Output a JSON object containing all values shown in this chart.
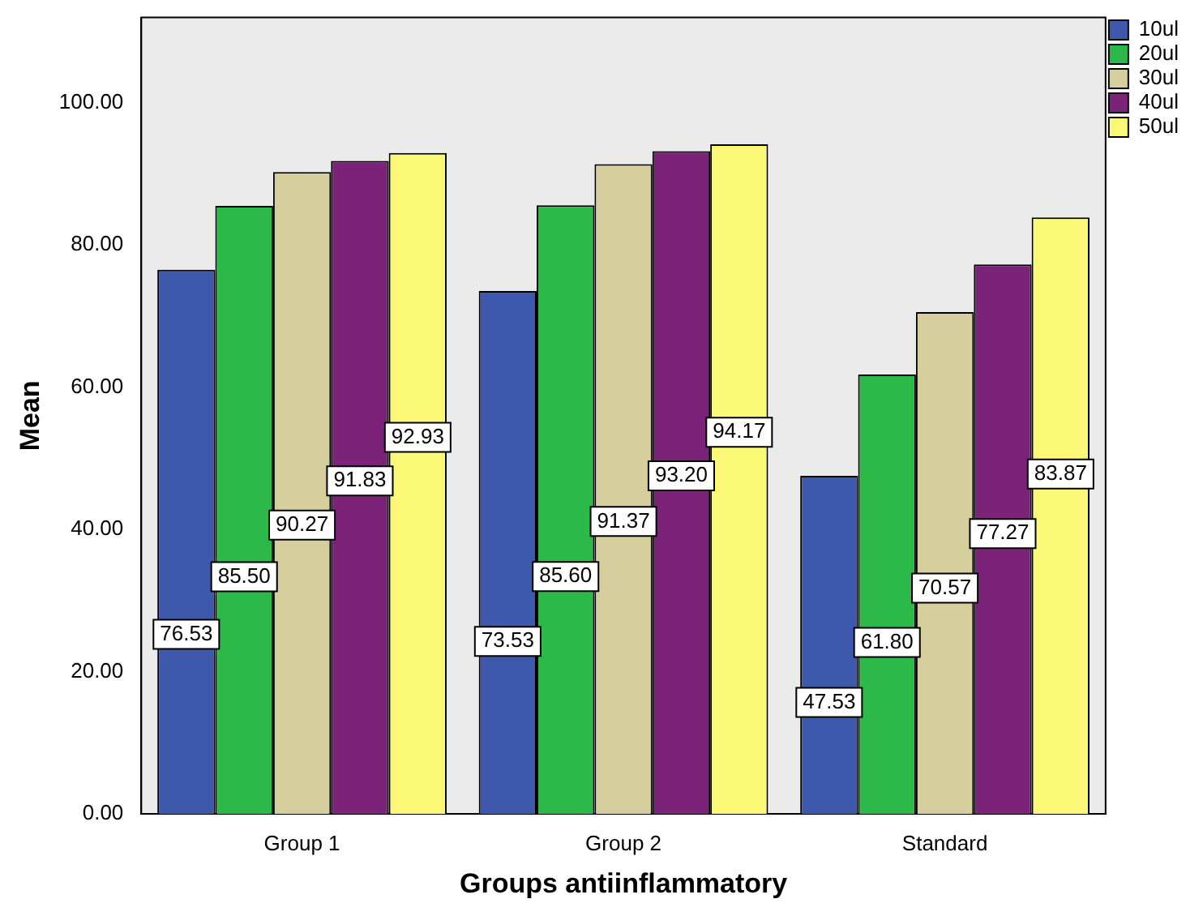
{
  "chart_data": {
    "type": "bar",
    "xlabel": "Groups antiinflammatory",
    "ylabel": "Mean",
    "categories": [
      "Group 1",
      "Group 2",
      "Standard"
    ],
    "series": [
      {
        "name": "10ul",
        "color": "#3e58ac",
        "values": [
          76.53,
          73.53,
          47.53
        ],
        "value_labels": [
          "76.53",
          "73.53",
          "47.53"
        ]
      },
      {
        "name": "20ul",
        "color": "#2db84a",
        "values": [
          85.5,
          85.6,
          61.8
        ],
        "value_labels": [
          "85.50",
          "85.60",
          "61.80"
        ]
      },
      {
        "name": "30ul",
        "color": "#d4cf9c",
        "values": [
          90.27,
          91.37,
          70.57
        ],
        "value_labels": [
          "90.27",
          "91.37",
          "70.57"
        ]
      },
      {
        "name": "40ul",
        "color": "#7b2378",
        "values": [
          91.83,
          93.2,
          77.27
        ],
        "value_labels": [
          "91.83",
          "93.20",
          "77.27"
        ]
      },
      {
        "name": "50ul",
        "color": "#fbf878",
        "values": [
          92.93,
          94.17,
          83.87
        ],
        "value_labels": [
          "92.93",
          "94.17",
          "83.87"
        ]
      }
    ],
    "ylim": [
      0,
      112
    ],
    "yticks": [
      {
        "value": 0,
        "label": "0.00"
      },
      {
        "value": 20,
        "label": "20.00"
      },
      {
        "value": 40,
        "label": "40.00"
      },
      {
        "value": 60,
        "label": "60.00"
      },
      {
        "value": 80,
        "label": "80.00"
      },
      {
        "value": 100,
        "label": "100.00"
      }
    ],
    "grid": false,
    "legend": "top right"
  }
}
